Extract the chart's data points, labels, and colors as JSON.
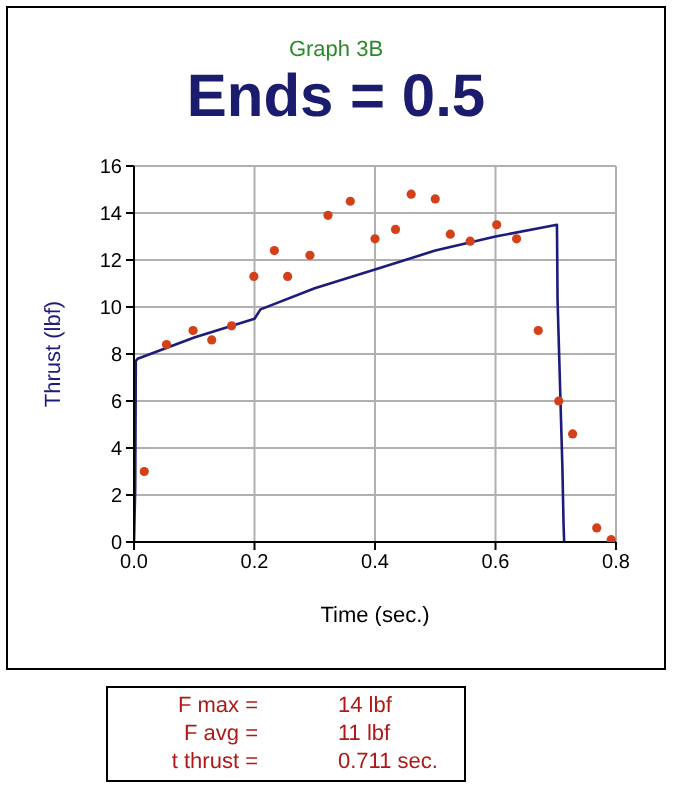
{
  "chart_data": {
    "type": "line",
    "subtitle": "Graph 3B",
    "title": "Ends = 0.5",
    "xlabel": "Time  (sec.)",
    "ylabel": "Thrust  (lbf)",
    "xlim": [
      0,
      0.8
    ],
    "xticks": [
      {
        "value": 0,
        "label": "0.0"
      },
      {
        "value": 0.2,
        "label": "0.2"
      },
      {
        "value": 0.4,
        "label": "0.4"
      },
      {
        "value": 0.6,
        "label": "0.6"
      },
      {
        "value": 0.8,
        "label": "0.8"
      }
    ],
    "ylim": [
      0,
      16
    ],
    "yticks": [
      0,
      2,
      4,
      6,
      8,
      10,
      12,
      14,
      16
    ],
    "grid": true,
    "series": [
      {
        "color": "#1c1c7c",
        "marker": "none",
        "x": [
          0,
          0.002,
          0.003,
          0.006,
          0.1,
          0.2,
          0.21,
          0.3,
          0.4,
          0.5,
          0.6,
          0.702,
          0.703,
          0.711,
          0.713,
          0.714
        ],
        "values": [
          0,
          2.3,
          7.7,
          7.8,
          8.7,
          9.5,
          9.9,
          10.8,
          11.6,
          12.4,
          13.0,
          13.5,
          10.3,
          3.2,
          0.7,
          0
        ]
      },
      {
        "type": "scatter",
        "color": "#d4401a",
        "marker": "circle",
        "x": [
          0.017,
          0.054,
          0.098,
          0.129,
          0.162,
          0.199,
          0.233,
          0.255,
          0.292,
          0.322,
          0.359,
          0.4,
          0.434,
          0.46,
          0.5,
          0.525,
          0.558,
          0.602,
          0.635,
          0.671,
          0.705,
          0.728,
          0.768,
          0.792
        ],
        "values": [
          3.0,
          8.4,
          9.0,
          8.6,
          9.2,
          11.3,
          12.4,
          11.3,
          12.2,
          13.9,
          14.5,
          12.9,
          13.3,
          14.8,
          14.6,
          13.1,
          12.8,
          13.5,
          12.9,
          9.0,
          6.0,
          4.6,
          0.6,
          0.1
        ]
      }
    ],
    "annotations": [
      "F max =",
      "14 lbf",
      "F avg =",
      "11 lbf",
      "t thrust =",
      "0.711 sec."
    ]
  }
}
